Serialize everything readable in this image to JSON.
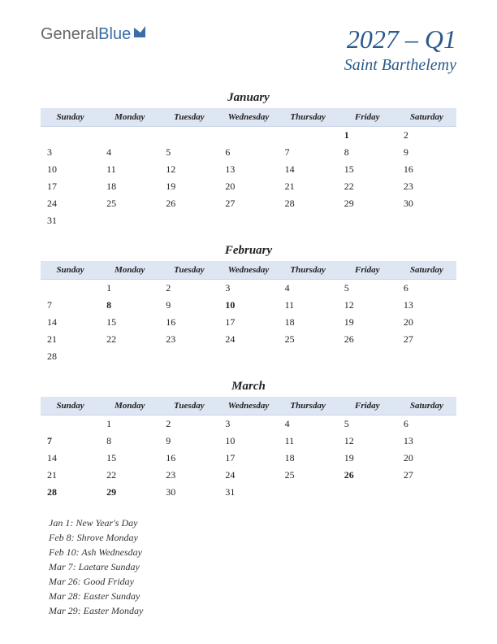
{
  "logo": {
    "part1": "General",
    "part2": "Blue"
  },
  "title": "2027 – Q1",
  "subtitle": "Saint Barthelemy",
  "day_headers": [
    "Sunday",
    "Monday",
    "Tuesday",
    "Wednesday",
    "Thursday",
    "Friday",
    "Saturday"
  ],
  "months": [
    {
      "name": "January",
      "weeks": [
        [
          "",
          "",
          "",
          "",
          "",
          "1",
          "2"
        ],
        [
          "3",
          "4",
          "5",
          "6",
          "7",
          "8",
          "9"
        ],
        [
          "10",
          "11",
          "12",
          "13",
          "14",
          "15",
          "16"
        ],
        [
          "17",
          "18",
          "19",
          "20",
          "21",
          "22",
          "23"
        ],
        [
          "24",
          "25",
          "26",
          "27",
          "28",
          "29",
          "30"
        ],
        [
          "31",
          "",
          "",
          "",
          "",
          "",
          ""
        ]
      ],
      "holidays": [
        "1"
      ]
    },
    {
      "name": "February",
      "weeks": [
        [
          "",
          "1",
          "2",
          "3",
          "4",
          "5",
          "6"
        ],
        [
          "7",
          "8",
          "9",
          "10",
          "11",
          "12",
          "13"
        ],
        [
          "14",
          "15",
          "16",
          "17",
          "18",
          "19",
          "20"
        ],
        [
          "21",
          "22",
          "23",
          "24",
          "25",
          "26",
          "27"
        ],
        [
          "28",
          "",
          "",
          "",
          "",
          "",
          ""
        ]
      ],
      "holidays": [
        "8",
        "10"
      ]
    },
    {
      "name": "March",
      "weeks": [
        [
          "",
          "1",
          "2",
          "3",
          "4",
          "5",
          "6"
        ],
        [
          "7",
          "8",
          "9",
          "10",
          "11",
          "12",
          "13"
        ],
        [
          "14",
          "15",
          "16",
          "17",
          "18",
          "19",
          "20"
        ],
        [
          "21",
          "22",
          "23",
          "24",
          "25",
          "26",
          "27"
        ],
        [
          "28",
          "29",
          "30",
          "31",
          "",
          "",
          ""
        ]
      ],
      "holidays": [
        "7",
        "26",
        "28",
        "29"
      ]
    }
  ],
  "holiday_list": [
    "Jan 1: New Year's Day",
    "Feb 8: Shrove Monday",
    "Feb 10: Ash Wednesday",
    "Mar 7: Laetare Sunday",
    "Mar 26: Good Friday",
    "Mar 28: Easter Sunday",
    "Mar 29: Easter Monday"
  ],
  "colors": {
    "header_bg": "#dde6f2",
    "title_color": "#2b5a8a",
    "holiday_color": "#cc0000",
    "text_color": "#222222",
    "background": "#ffffff"
  }
}
